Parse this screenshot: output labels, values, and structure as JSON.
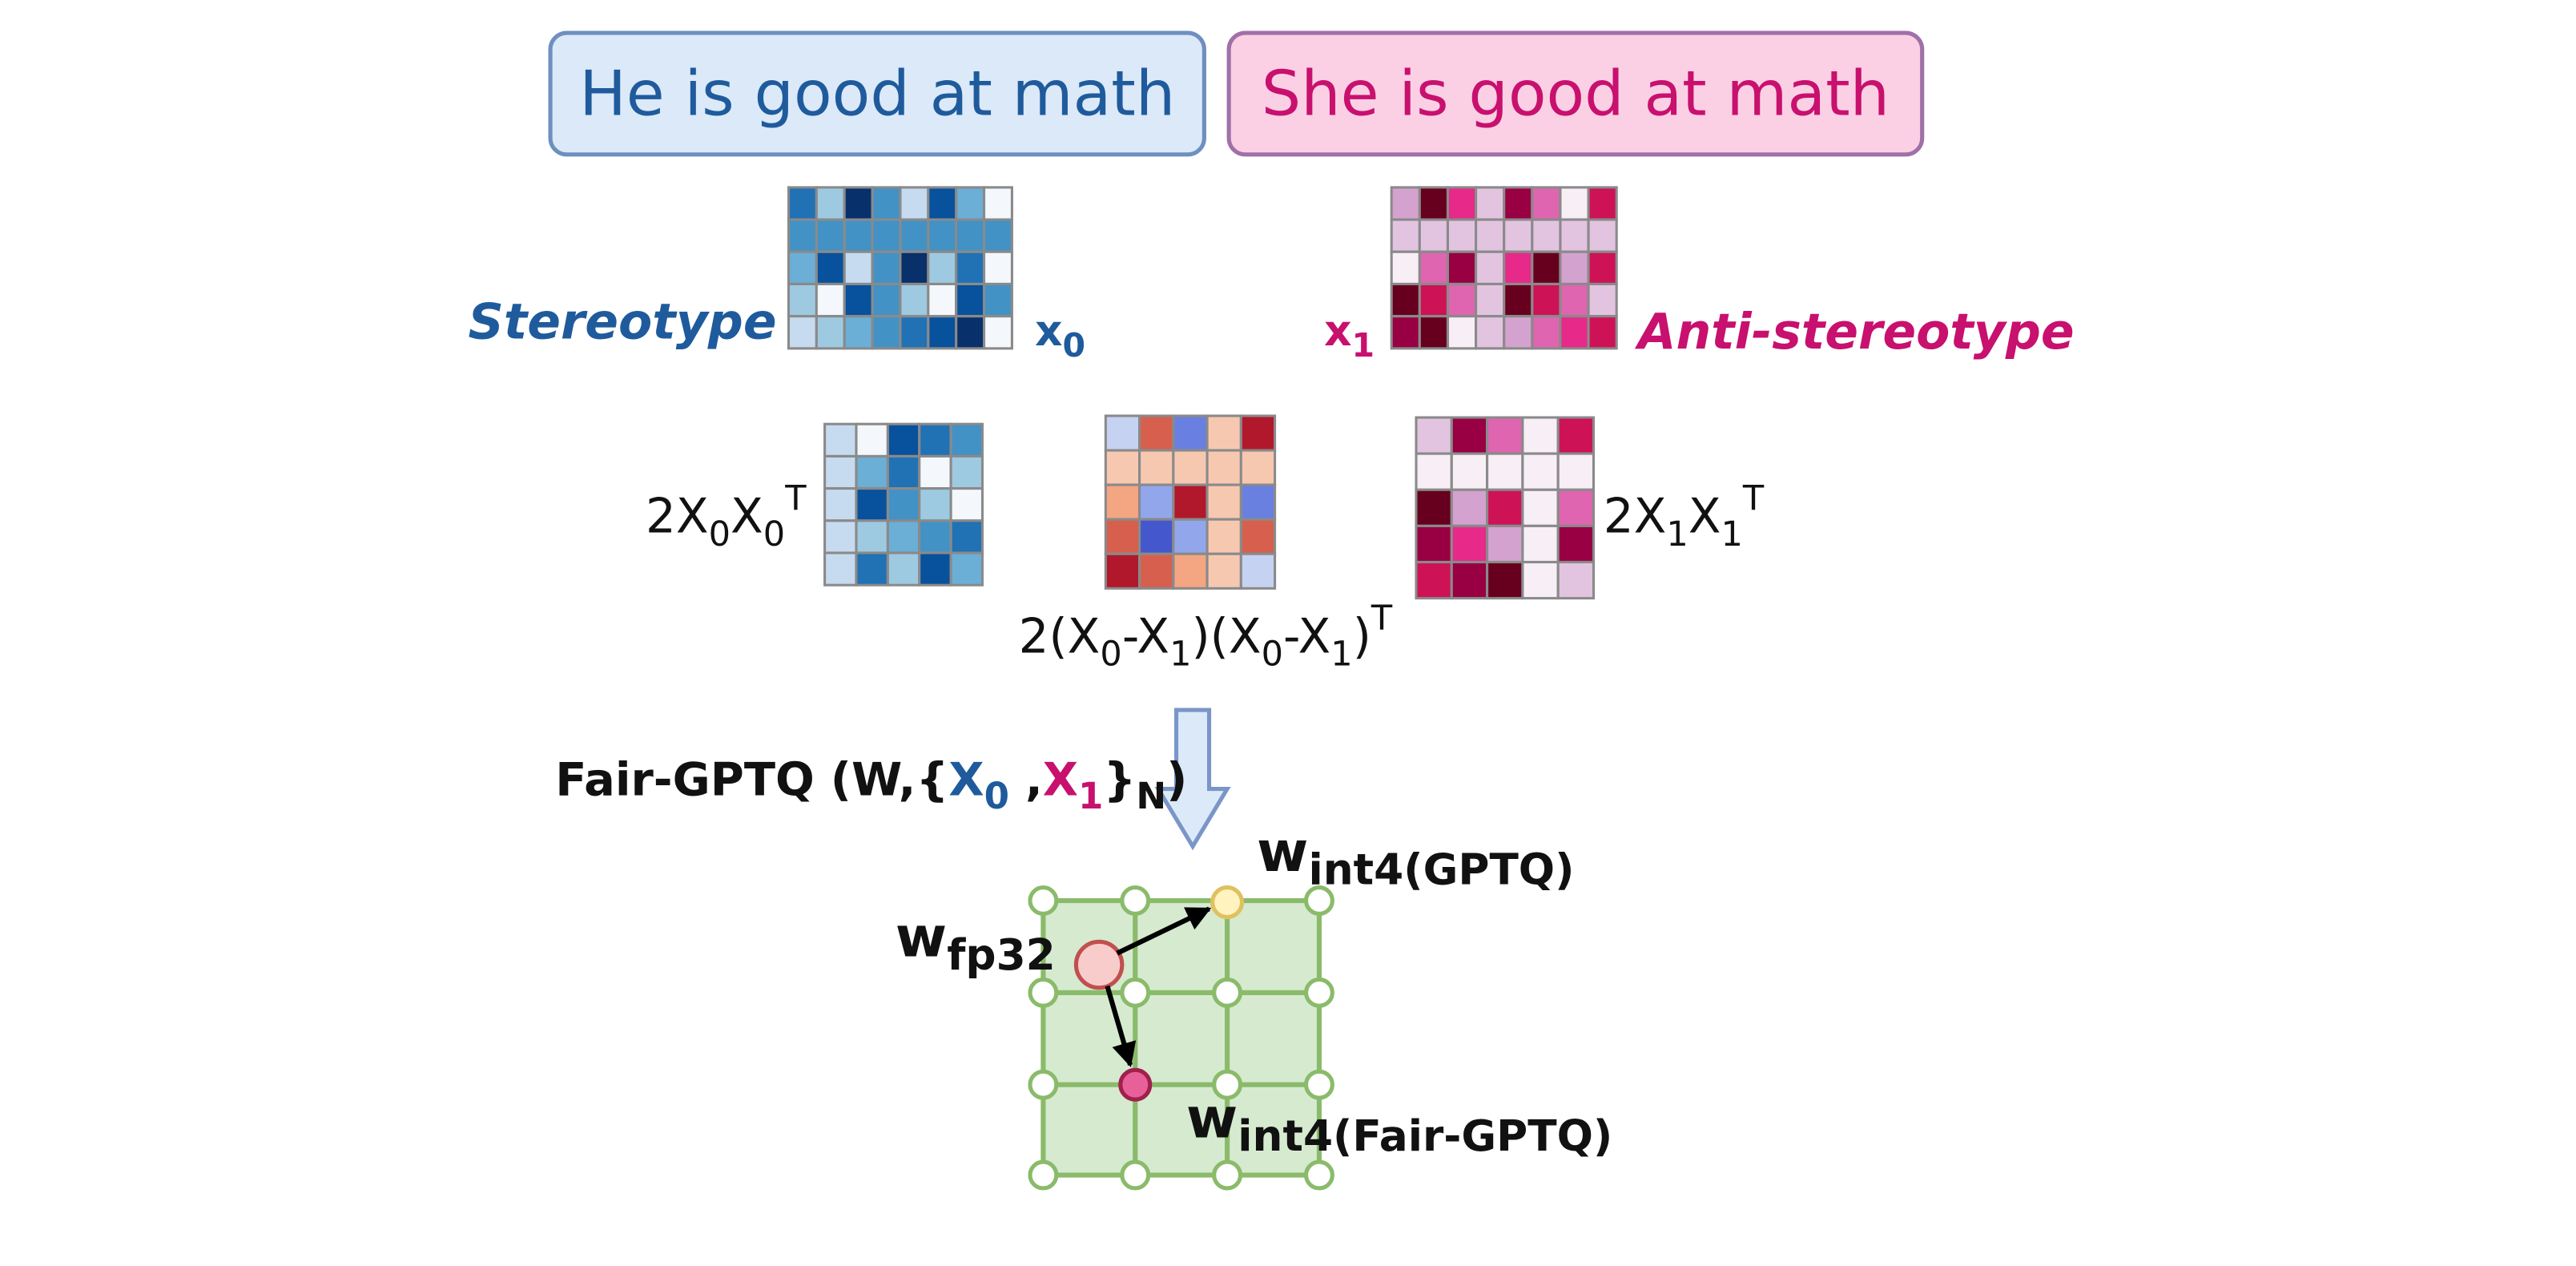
{
  "sentences": {
    "stereotype": "He is good at math",
    "anti_stereotype": "She is good at math"
  },
  "labels": {
    "stereotype": "Stereotype",
    "anti_stereotype": "Anti-stereotype",
    "x0": [
      "x",
      "0"
    ],
    "x1": [
      "x",
      "1"
    ]
  },
  "formulas": {
    "gram_x0": [
      "2X",
      "0",
      "X",
      "0",
      "T"
    ],
    "diff": [
      "2(X",
      "0",
      "-X",
      "1",
      ")(X",
      "0",
      "-X",
      "1",
      ")",
      "T"
    ],
    "gram_x1": [
      "2X",
      "1",
      "X",
      "1",
      "T"
    ],
    "fair_gptq": [
      "Fair-GPTQ (W,{",
      "X",
      "0",
      " ,",
      "X",
      "1",
      "}",
      "N",
      ")"
    ]
  },
  "weights": {
    "fp32": [
      "w",
      "fp32"
    ],
    "int4_gptq": [
      "w",
      "int4(GPTQ)"
    ],
    "int4_fair": [
      "w",
      "int4(Fair-GPTQ)"
    ]
  }
}
